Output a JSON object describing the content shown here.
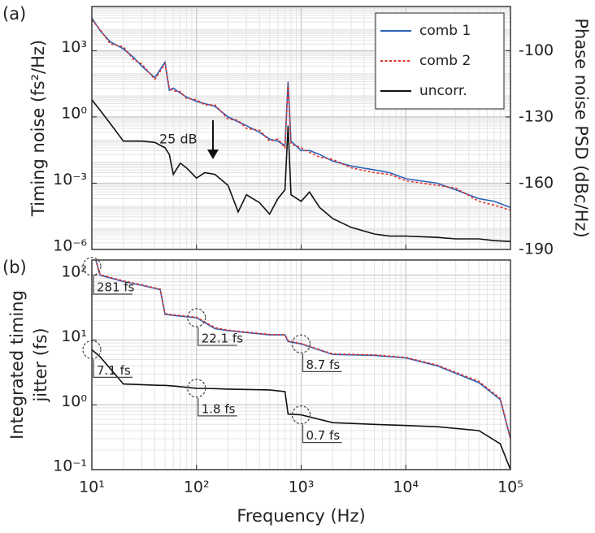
{
  "chart_data": [
    {
      "type": "line",
      "label": "(a)",
      "ylabel": "Timing noise (fs²/Hz)",
      "y2label": "Phase noise PSD (dBc/Hz)",
      "xlog": true,
      "ylog": true,
      "grid": true,
      "legend": "upper right",
      "xlim": [
        10,
        100000
      ],
      "xticks": [
        10,
        100,
        1000,
        10000,
        100000
      ],
      "ylim": [
        1e-06,
        100000
      ],
      "yticks": [
        {
          "value": 1e-06,
          "label": "10⁻⁶"
        },
        {
          "value": 0.001,
          "label": "10⁻³"
        },
        {
          "value": 1,
          "label": "10⁰"
        },
        {
          "value": 1000,
          "label": "10³"
        }
      ],
      "y2lim": [
        -190,
        -80
      ],
      "y2ticks": [
        -190,
        -160,
        -130,
        -100
      ],
      "annotations": [
        {
          "text": "25 dB"
        }
      ],
      "x": [
        10,
        12,
        15,
        20,
        25,
        30,
        40,
        50,
        55,
        60,
        70,
        80,
        100,
        120,
        150,
        200,
        250,
        300,
        400,
        500,
        600,
        700,
        750,
        800,
        1000,
        1200,
        1500,
        2000,
        3000,
        5000,
        7000,
        10000,
        20000,
        30000,
        50000,
        70000,
        100000
      ],
      "series": [
        {
          "name": "comb 1",
          "color": "#2d62b8",
          "dash": "solid",
          "values": [
            30000,
            8000,
            2500,
            1200,
            500,
            200,
            60,
            300,
            16,
            20,
            12,
            8,
            5,
            4,
            3,
            1,
            0.6,
            0.4,
            0.2,
            0.1,
            0.08,
            0.05,
            40,
            0.08,
            0.03,
            0.03,
            0.02,
            0.01,
            0.006,
            0.004,
            0.003,
            0.0016,
            0.001,
            0.0005,
            0.0002,
            0.00015,
            8e-05
          ]
        },
        {
          "name": "comb 2",
          "color": "#e0302a",
          "dash": "dotted",
          "values": [
            25000,
            9000,
            2000,
            1500,
            400,
            250,
            50,
            250,
            20,
            15,
            14,
            7,
            6,
            3.5,
            3.5,
            0.8,
            0.7,
            0.3,
            0.25,
            0.08,
            0.1,
            0.04,
            30,
            0.06,
            0.04,
            0.025,
            0.015,
            0.012,
            0.005,
            0.003,
            0.0025,
            0.0013,
            0.0008,
            0.0006,
            0.00015,
            0.0001,
            6e-05
          ]
        },
        {
          "name": "uncorr.",
          "color": "#111111",
          "dash": "solid",
          "values": [
            6,
            2,
            0.5,
            0.08,
            0.08,
            0.08,
            0.07,
            0.04,
            0.02,
            0.0025,
            0.008,
            0.005,
            0.0017,
            0.003,
            0.0025,
            0.0008,
            5e-05,
            0.0003,
            0.00013,
            4e-05,
            0.0002,
            0.0005,
            0.4,
            0.0003,
            0.00015,
            0.0004,
            8e-05,
            2.5e-05,
            1e-05,
            5e-06,
            4e-06,
            4e-06,
            3.5e-06,
            3e-06,
            3e-06,
            2.5e-06,
            2.3e-06
          ]
        }
      ]
    },
    {
      "type": "line",
      "label": "(b)",
      "ylabel": [
        "Integrated timing",
        "jitter (fs)"
      ],
      "xlabel": "Frequency (Hz)",
      "xlog": true,
      "ylog": true,
      "grid": true,
      "xlim": [
        10,
        100000
      ],
      "xticks": [
        {
          "value": 10,
          "label": "10¹"
        },
        {
          "value": 100,
          "label": "10²"
        },
        {
          "value": 1000,
          "label": "10³"
        },
        {
          "value": 10000,
          "label": "10⁴"
        },
        {
          "value": 100000,
          "label": "10⁵"
        }
      ],
      "ylim": [
        0.1,
        172
      ],
      "yticks": [
        {
          "value": 0.1,
          "label": "10⁻¹"
        },
        {
          "value": 1,
          "label": "10⁰"
        },
        {
          "value": 10,
          "label": "10¹"
        },
        {
          "value": 100,
          "label": "10²"
        }
      ],
      "annotations": [
        {
          "text": "281 fs",
          "x": 10,
          "y": 281
        },
        {
          "text": "22.1 fs",
          "x": 100,
          "y": 22.1
        },
        {
          "text": "8.7 fs",
          "x": 1000,
          "y": 8.7
        },
        {
          "text": "7.1 fs",
          "x": 10,
          "y": 7.1
        },
        {
          "text": "1.8 fs",
          "x": 100,
          "y": 1.8
        },
        {
          "text": "0.7 fs",
          "x": 1000,
          "y": 0.7
        }
      ],
      "x": [
        10,
        12,
        20,
        30,
        45,
        50,
        60,
        100,
        150,
        200,
        500,
        700,
        750,
        1000,
        2000,
        5000,
        10000,
        20000,
        50000,
        80000,
        100000
      ],
      "series": [
        {
          "name": "comb 1",
          "color": "#2d62b8",
          "dash": "solid",
          "values": [
            281,
            100,
            80,
            70,
            60,
            25,
            24,
            22.1,
            15,
            14,
            12,
            12,
            9.5,
            8.7,
            6,
            5.8,
            5.3,
            4,
            2.2,
            1.2,
            0.3
          ]
        },
        {
          "name": "comb 2",
          "color": "#e0302a",
          "dash": "dotted",
          "values": [
            281,
            102,
            82,
            71,
            61,
            25.5,
            24.5,
            22.5,
            15.5,
            14.2,
            12.2,
            12.1,
            9.7,
            8.8,
            6.1,
            5.9,
            5.4,
            4.1,
            2.3,
            1.25,
            0.3
          ]
        },
        {
          "name": "uncorr.",
          "color": "#111111",
          "dash": "solid",
          "values": [
            7.1,
            5.5,
            2.1,
            2.05,
            2,
            2,
            1.95,
            1.8,
            1.78,
            1.75,
            1.7,
            1.6,
            0.72,
            0.7,
            0.53,
            0.5,
            0.48,
            0.46,
            0.4,
            0.25,
            0.1
          ]
        }
      ]
    }
  ]
}
